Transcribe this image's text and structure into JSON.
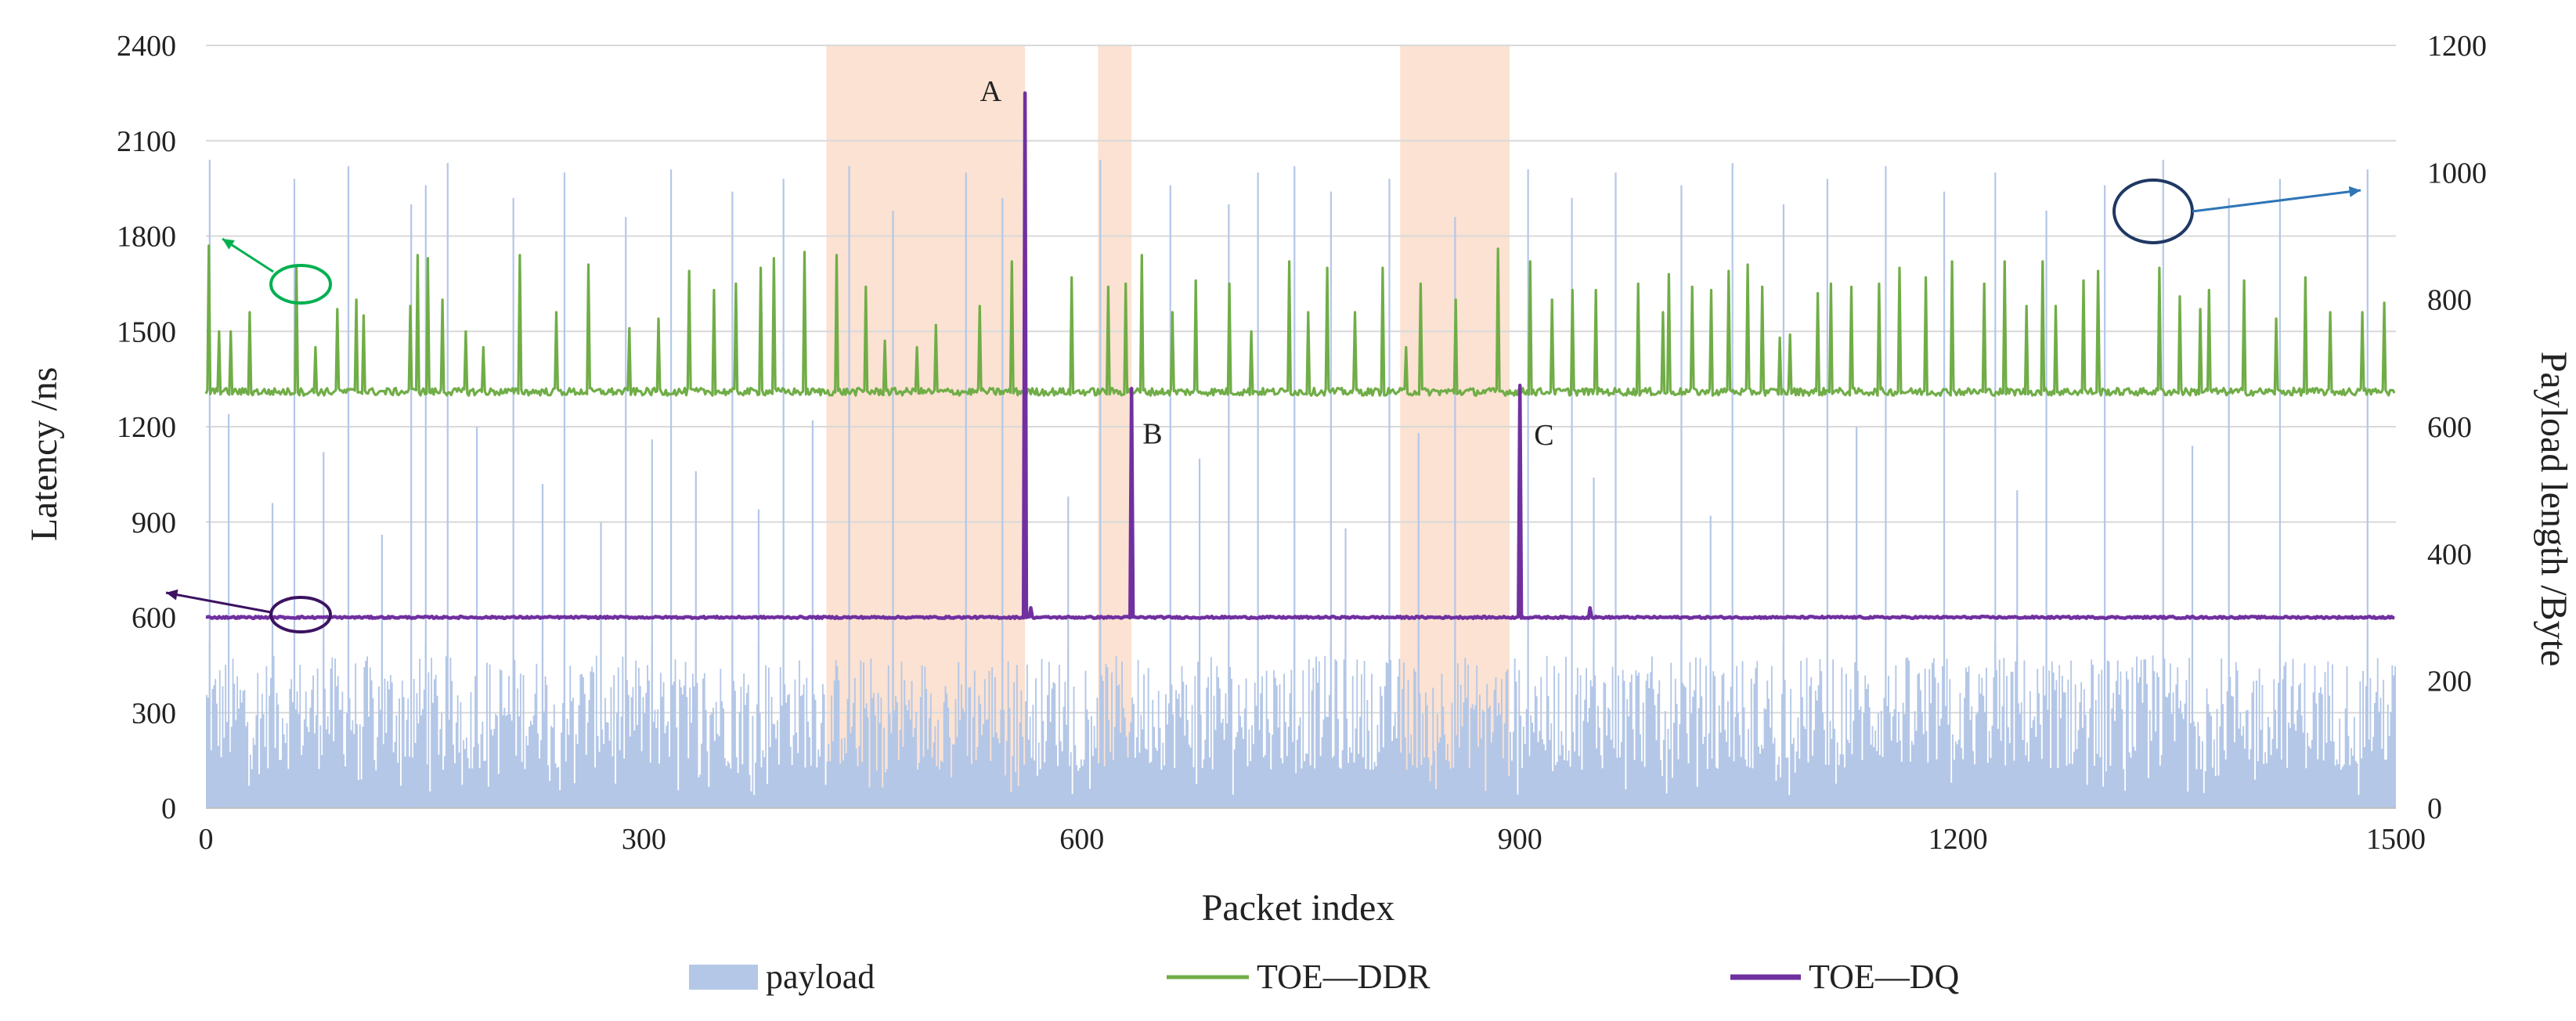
{
  "chart_data": {
    "type": "bar+line",
    "xlabel": "Packet index",
    "ylabel_left": "Latency /ns",
    "ylabel_right": "Payload length /Byte",
    "x_range": [
      0,
      1500
    ],
    "x_ticks": [
      0,
      300,
      600,
      900,
      1200,
      1500
    ],
    "y_left_range": [
      0,
      2400
    ],
    "y_left_ticks": [
      0,
      300,
      600,
      900,
      1200,
      1500,
      1800,
      2100,
      2400
    ],
    "y_right_range": [
      0,
      1200
    ],
    "y_right_ticks": [
      0,
      200,
      400,
      600,
      800,
      1000,
      1200
    ],
    "grid": true,
    "colors": {
      "payload": "#b4c7e7",
      "ddr": "#70ad47",
      "dq": "#7030a0",
      "shade": "#f8cbad",
      "grid": "#d9d9d9",
      "ddr_annot": "#00b050",
      "dq_annot": "#3c1361",
      "payload_annot": "#1f3864",
      "payload_arrow": "#2e75b6"
    },
    "shaded_regions": [
      [
        425,
        561
      ],
      [
        611,
        634
      ],
      [
        818,
        893
      ]
    ],
    "series": [
      {
        "name": "payload",
        "type": "bar",
        "axis": "right",
        "generator": {
          "n_points": 1500,
          "baseline_range": [
            60,
            240
          ],
          "spike_values": [
            1020,
            990,
            1010,
            950,
            980,
            1015,
            960,
            1000,
            930,
            1005,
            970,
            990,
            1010,
            940,
            1000,
            960,
            1020,
            980,
            950,
            1000,
            1010,
            970,
            990,
            930,
            1005,
            960,
            1000,
            980,
            1015,
            950,
            990,
            1010,
            970,
            1000,
            940,
            980,
            1020,
            960,
            990,
            1005
          ],
          "spike_indices": [
            2,
            60,
            97,
            140,
            150,
            165,
            210,
            245,
            287,
            318,
            360,
            395,
            440,
            470,
            520,
            545,
            612,
            660,
            700,
            720,
            745,
            770,
            810,
            855,
            905,
            935,
            965,
            1010,
            1045,
            1080,
            1110,
            1150,
            1190,
            1225,
            1260,
            1300,
            1340,
            1385,
            1420,
            1480
          ],
          "mid_spike_values": [
            620,
            480,
            560,
            430,
            600,
            510,
            450,
            580,
            530,
            470,
            610,
            490,
            550,
            440,
            590,
            520,
            460,
            600,
            500,
            570
          ],
          "mid_spike_indices": [
            15,
            45,
            80,
            120,
            185,
            230,
            270,
            305,
            335,
            378,
            415,
            590,
            680,
            780,
            830,
            950,
            1030,
            1130,
            1240,
            1360
          ]
        }
      },
      {
        "name": "TOE—DDR",
        "type": "line",
        "axis": "left",
        "generator": {
          "n_points": 1500,
          "baseline": 1310,
          "noise": 12,
          "spikes": [
            [
              2,
              1770
            ],
            [
              9,
              1500
            ],
            [
              17,
              1500
            ],
            [
              30,
              1560
            ],
            [
              62,
              1700
            ],
            [
              75,
              1450
            ],
            [
              90,
              1570
            ],
            [
              103,
              1600
            ],
            [
              108,
              1550
            ],
            [
              140,
              1580
            ],
            [
              145,
              1740
            ],
            [
              152,
              1730
            ],
            [
              162,
              1600
            ],
            [
              178,
              1500
            ],
            [
              190,
              1450
            ],
            [
              215,
              1740
            ],
            [
              240,
              1560
            ],
            [
              262,
              1710
            ],
            [
              290,
              1510
            ],
            [
              310,
              1540
            ],
            [
              331,
              1690
            ],
            [
              348,
              1630
            ],
            [
              363,
              1650
            ],
            [
              380,
              1700
            ],
            [
              389,
              1730
            ],
            [
              410,
              1750
            ],
            [
              432,
              1740
            ],
            [
              452,
              1640
            ],
            [
              465,
              1470
            ],
            [
              487,
              1450
            ],
            [
              500,
              1520
            ],
            [
              530,
              1580
            ],
            [
              552,
              1720
            ],
            [
              593,
              1670
            ],
            [
              618,
              1640
            ],
            [
              630,
              1650
            ],
            [
              641,
              1740
            ],
            [
              662,
              1560
            ],
            [
              678,
              1660
            ],
            [
              701,
              1650
            ],
            [
              716,
              1500
            ],
            [
              742,
              1720
            ],
            [
              755,
              1560
            ],
            [
              768,
              1700
            ],
            [
              787,
              1560
            ],
            [
              806,
              1700
            ],
            [
              822,
              1450
            ],
            [
              832,
              1650
            ],
            [
              856,
              1600
            ],
            [
              885,
              1760
            ],
            [
              907,
              1720
            ],
            [
              922,
              1600
            ],
            [
              936,
              1630
            ],
            [
              952,
              1630
            ],
            [
              981,
              1650
            ],
            [
              998,
              1560
            ],
            [
              1002,
              1680
            ],
            [
              1018,
              1640
            ],
            [
              1031,
              1630
            ],
            [
              1043,
              1690
            ],
            [
              1056,
              1710
            ],
            [
              1066,
              1640
            ],
            [
              1078,
              1480
            ],
            [
              1085,
              1490
            ],
            [
              1104,
              1620
            ],
            [
              1113,
              1650
            ],
            [
              1127,
              1640
            ],
            [
              1146,
              1650
            ],
            [
              1160,
              1700
            ],
            [
              1178,
              1670
            ],
            [
              1196,
              1720
            ],
            [
              1218,
              1650
            ],
            [
              1232,
              1720
            ],
            [
              1247,
              1580
            ],
            [
              1258,
              1720
            ],
            [
              1267,
              1580
            ],
            [
              1286,
              1660
            ],
            [
              1296,
              1690
            ],
            [
              1338,
              1700
            ],
            [
              1352,
              1610
            ],
            [
              1366,
              1570
            ],
            [
              1372,
              1630
            ],
            [
              1396,
              1660
            ],
            [
              1418,
              1540
            ],
            [
              1438,
              1670
            ],
            [
              1455,
              1560
            ],
            [
              1477,
              1560
            ],
            [
              1492,
              1590
            ]
          ]
        }
      },
      {
        "name": "TOE—DQ",
        "type": "line",
        "axis": "left",
        "generator": {
          "n_points": 1500,
          "baseline": 600,
          "noise": 3,
          "spikes": [
            [
              561,
              2250
            ],
            [
              565,
              630
            ],
            [
              634,
              1320
            ],
            [
              900,
              1330
            ],
            [
              948,
              630
            ]
          ]
        }
      }
    ],
    "legend": {
      "placement": "bottom",
      "items": [
        {
          "label": "payload",
          "style": "bar"
        },
        {
          "label": "TOE—DDR",
          "style": "line"
        },
        {
          "label": "TOE—DQ",
          "style": "line"
        }
      ]
    },
    "annotations": [
      {
        "label": "A",
        "x": 561,
        "y": 2250
      },
      {
        "label": "B",
        "x": 634,
        "y": 1320
      },
      {
        "label": "C",
        "x": 900,
        "y": 1330
      }
    ]
  }
}
